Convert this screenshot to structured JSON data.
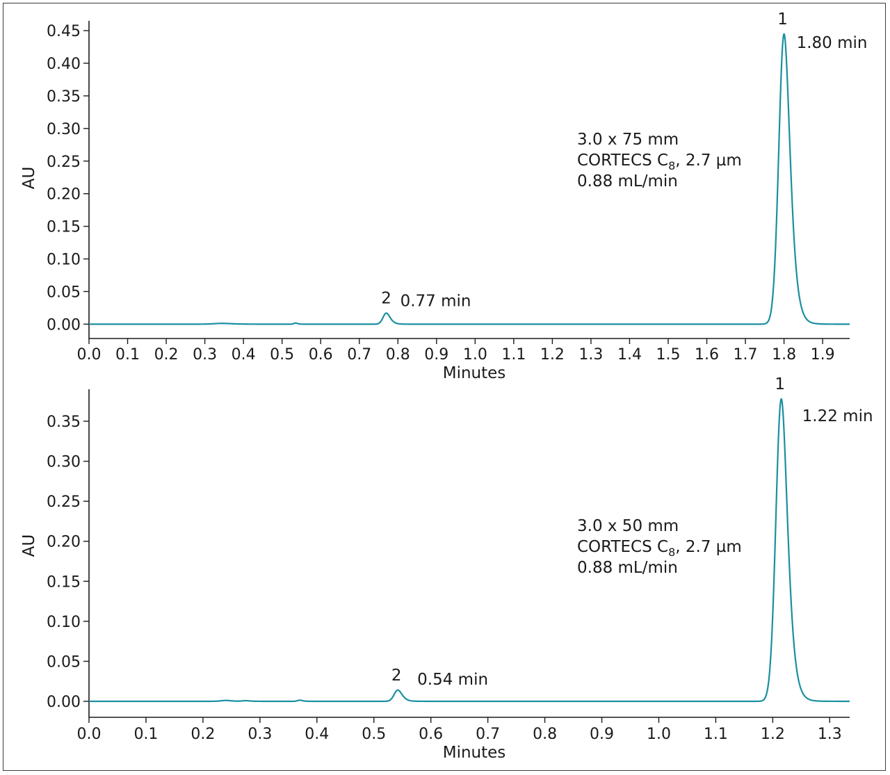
{
  "colors": {
    "trace": "#1a8fa0",
    "axis": "#1a1a1a",
    "text": "#1a1a1a"
  },
  "chart_data": [
    {
      "type": "line",
      "xlabel": "Minutes",
      "ylabel": "AU",
      "xlim": [
        0.0,
        1.97
      ],
      "ylim": [
        -0.022,
        0.465
      ],
      "x_ticks": [
        "0.0",
        "0.1",
        "0.2",
        "0.3",
        "0.4",
        "0.5",
        "0.6",
        "0.7",
        "0.8",
        "0.9",
        "1.0",
        "1.1",
        "1.2",
        "1.3",
        "1.4",
        "1.5",
        "1.6",
        "1.7",
        "1.8",
        "1.9"
      ],
      "y_ticks": [
        "0.00",
        "0.05",
        "0.10",
        "0.15",
        "0.20",
        "0.25",
        "0.30",
        "0.35",
        "0.40",
        "0.45"
      ],
      "grid": false,
      "annotation": {
        "line1": "3.0 x 75 mm",
        "line2_prefix": "CORTECS C",
        "line2_sub": "8",
        "line2_suffix": ", 2.7 µm",
        "line3": "0.88 mL/min"
      },
      "peaks": [
        {
          "id": "1",
          "rt_label": "1.80 min",
          "x": 1.8,
          "height": 0.445,
          "sigma": 0.0135
        },
        {
          "id": "2",
          "rt_label": "0.77 min",
          "x": 0.77,
          "height": 0.017,
          "sigma": 0.0085
        }
      ],
      "minor_bumps": [
        {
          "x": 0.345,
          "height": 0.0012,
          "sigma": 0.02
        },
        {
          "x": 0.535,
          "height": 0.0018,
          "sigma": 0.004
        }
      ]
    },
    {
      "type": "line",
      "xlabel": "Minutes",
      "ylabel": "AU",
      "xlim": [
        0.0,
        1.335
      ],
      "ylim": [
        -0.02,
        0.39
      ],
      "x_ticks": [
        "0.0",
        "0.1",
        "0.2",
        "0.3",
        "0.4",
        "0.5",
        "0.6",
        "0.7",
        "0.8",
        "0.9",
        "1.0",
        "1.1",
        "1.2",
        "1.3"
      ],
      "y_ticks": [
        "0.00",
        "0.05",
        "0.10",
        "0.15",
        "0.20",
        "0.25",
        "0.30",
        "0.35"
      ],
      "grid": false,
      "annotation": {
        "line1": "3.0 x 50 mm",
        "line2_prefix": "CORTECS C",
        "line2_sub": "8",
        "line2_suffix": ", 2.7 µm",
        "line3": "0.88 mL/min"
      },
      "peaks": [
        {
          "id": "1",
          "rt_label": "1.22 min",
          "x": 1.215,
          "height": 0.378,
          "sigma": 0.0095
        },
        {
          "id": "2",
          "rt_label": "0.54 min",
          "x": 0.542,
          "height": 0.014,
          "sigma": 0.0065
        }
      ],
      "minor_bumps": [
        {
          "x": 0.24,
          "height": 0.0011,
          "sigma": 0.008
        },
        {
          "x": 0.275,
          "height": 0.0008,
          "sigma": 0.006
        },
        {
          "x": 0.37,
          "height": 0.0014,
          "sigma": 0.004
        }
      ]
    }
  ]
}
